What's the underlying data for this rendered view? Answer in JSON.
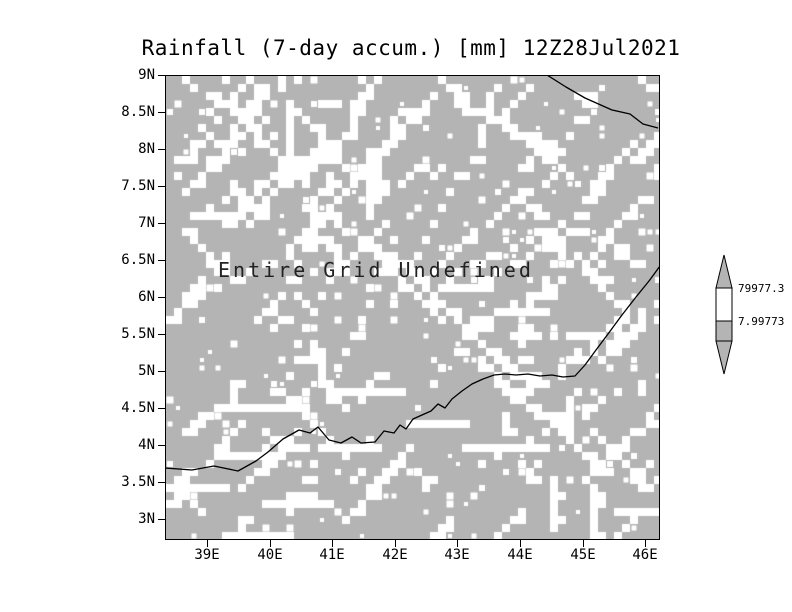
{
  "title": "Rainfall (7-day accum.) [mm] 12Z28Jul2021",
  "plot": {
    "annotation": "Entire Grid Undefined",
    "field_color": "#b4b4b4",
    "speckle_color": "#ffffff",
    "border_color": "#000000",
    "coastline_color": "#000000"
  },
  "y_axis": {
    "labels": [
      "9N",
      "8.5N",
      "8N",
      "7.5N",
      "7N",
      "6.5N",
      "6N",
      "5.5N",
      "5N",
      "4.5N",
      "4N",
      "3.5N",
      "3N"
    ]
  },
  "x_axis": {
    "labels": [
      "39E",
      "40E",
      "41E",
      "42E",
      "43E",
      "44E",
      "45E",
      "46E"
    ]
  },
  "colorbar": {
    "labels": [
      "79977.3",
      "7.99773"
    ],
    "arrow_color": "#b4b4b4",
    "band_colors": [
      "#ffffff",
      "#b4b4b4"
    ]
  },
  "chart_data": {
    "type": "heatmap",
    "title": "Rainfall (7-day accum.) [mm] 12Z28Jul2021",
    "variable": "Rainfall (7-day accum.)",
    "units": "mm",
    "valid_time": "12Z28Jul2021",
    "x_tick_labels": [
      "39E",
      "40E",
      "41E",
      "42E",
      "43E",
      "44E",
      "45E",
      "46E"
    ],
    "y_tick_labels": [
      "9N",
      "8.5N",
      "8N",
      "7.5N",
      "7N",
      "6.5N",
      "6N",
      "5.5N",
      "5N",
      "4.5N",
      "4N",
      "3.5N",
      "3N"
    ],
    "x_range_deg_east": [
      38.4,
      46.3
    ],
    "y_range_deg_north": [
      2.7,
      9.0
    ],
    "values": null,
    "status": "Entire Grid Undefined",
    "colorbar_levels": [
      79977.3,
      7.99773
    ],
    "legend_position": "right",
    "grid": false,
    "notes": "All grid values undefined; gray field rendered with white dither speckle pattern; coastlines overlaid in black."
  }
}
